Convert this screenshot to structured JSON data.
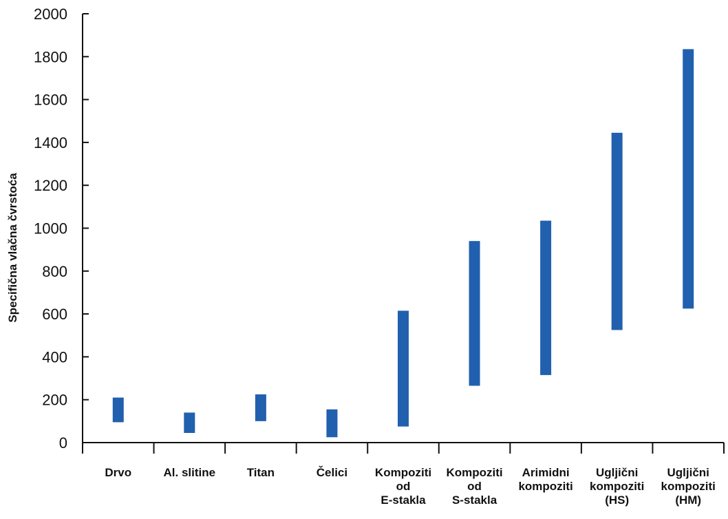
{
  "chart_data": {
    "type": "bar",
    "subtype": "floating-range",
    "title": "",
    "xlabel": "",
    "ylabel": "Specifična vlačna čvrstoća",
    "ylim": [
      0,
      2000
    ],
    "yticks": [
      0,
      200,
      400,
      600,
      800,
      1000,
      1200,
      1400,
      1600,
      1800,
      2000
    ],
    "grid": false,
    "legend": "none",
    "bar_color": "#2160ae",
    "categories": [
      [
        "Drvo"
      ],
      [
        "Al. slitine"
      ],
      [
        "Titan"
      ],
      [
        "Čelici"
      ],
      [
        "Kompoziti",
        "od",
        "E-stakla"
      ],
      [
        "Kompoziti",
        "od",
        "S-stakla"
      ],
      [
        "Arimidni",
        "kompoziti"
      ],
      [
        "Ugljični",
        "kompoziti",
        "(HS)"
      ],
      [
        "Ugljični",
        "kompoziti",
        "(HM)"
      ]
    ],
    "ranges": [
      [
        95,
        210
      ],
      [
        45,
        140
      ],
      [
        100,
        225
      ],
      [
        25,
        155
      ],
      [
        75,
        615
      ],
      [
        265,
        940
      ],
      [
        315,
        1035
      ],
      [
        525,
        1445
      ],
      [
        625,
        1835
      ]
    ]
  }
}
